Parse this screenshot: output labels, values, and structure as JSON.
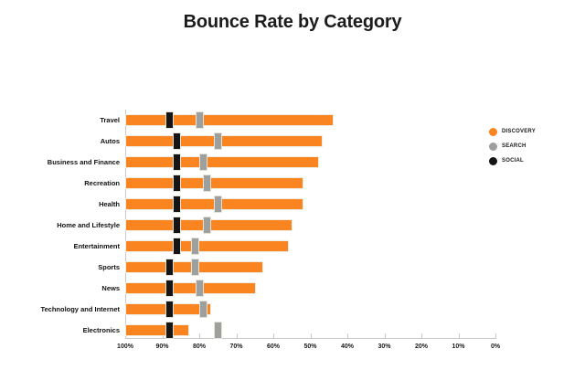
{
  "title": "Bounce Rate by Category",
  "colors": {
    "background": "#ffffff",
    "axis_line": "#c9c9c9",
    "discovery_orange": "#fa8420",
    "search_gray": "#9da09d",
    "social_black": "#151515",
    "text": "#1a1a1a"
  },
  "chart_data": {
    "type": "bar",
    "orientation": "horizontal",
    "title": "Bounce Rate by Category",
    "categories": [
      "Travel",
      "Autos",
      "Business and Finance",
      "Recreation",
      "Health",
      "Home and Lifestyle",
      "Entertainment",
      "Sports",
      "News",
      "Technology and Internet",
      "Electronics"
    ],
    "series": [
      {
        "name": "DISCOVERY",
        "render": "bar",
        "color": "#fa8420",
        "values": [
          44,
          47,
          48,
          52,
          52,
          55,
          56,
          63,
          65,
          77,
          83
        ]
      },
      {
        "name": "SEARCH",
        "render": "marker",
        "color": "#9da09d",
        "values": [
          80,
          75,
          79,
          78,
          75,
          78,
          81,
          81,
          80,
          79,
          75
        ]
      },
      {
        "name": "SOCIAL",
        "render": "marker",
        "color": "#151515",
        "values": [
          88,
          86,
          86,
          86,
          86,
          86,
          86,
          88,
          88,
          88,
          88
        ]
      }
    ],
    "x_axis": {
      "min": 0,
      "max": 100,
      "reversed": true,
      "unit": "%",
      "tick_labels": [
        "100%",
        "90%",
        "80%",
        "70%",
        "60%",
        "50%",
        "40%",
        "30%",
        "20%",
        "10%",
        "0%"
      ]
    },
    "y_axis": {
      "label": ""
    },
    "grid": false,
    "legend": {
      "position": "right",
      "entries": [
        {
          "label": "DISCOVERY",
          "color": "#fa8420"
        },
        {
          "label": "SEARCH",
          "color": "#9da09d"
        },
        {
          "label": "SOCIAL",
          "color": "#151515"
        }
      ]
    }
  }
}
